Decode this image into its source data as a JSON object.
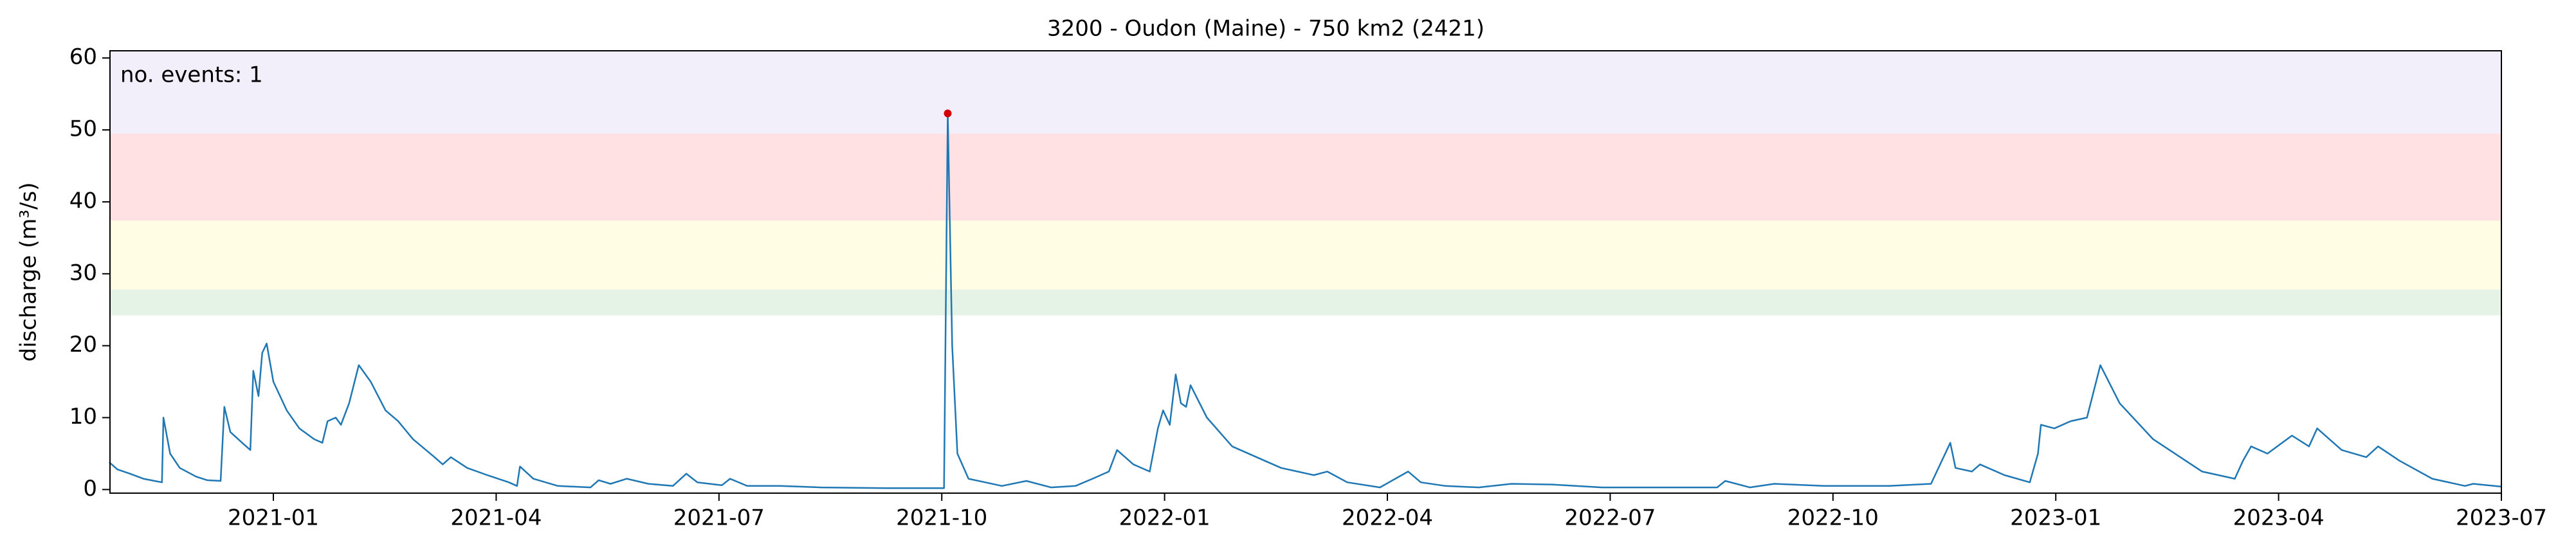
{
  "chart_data": {
    "type": "line",
    "title": "3200 - Oudon (Maine) - 750 km2 (2421)",
    "y_label": "discharge (m³/s)",
    "annotation": "no. events: 1",
    "annotation_color": "#d40000",
    "xlim": [
      -2.2,
      30
    ],
    "ylim": [
      -0.5,
      61
    ],
    "xticks": [
      {
        "value": 0,
        "label": "2021-01"
      },
      {
        "value": 3,
        "label": "2021-04"
      },
      {
        "value": 6,
        "label": "2021-07"
      },
      {
        "value": 9,
        "label": "2021-10"
      },
      {
        "value": 12,
        "label": "2022-01"
      },
      {
        "value": 15,
        "label": "2022-04"
      },
      {
        "value": 18,
        "label": "2022-07"
      },
      {
        "value": 21,
        "label": "2022-10"
      },
      {
        "value": 24,
        "label": "2023-01"
      },
      {
        "value": 27,
        "label": "2023-04"
      },
      {
        "value": 30,
        "label": "2023-07"
      }
    ],
    "yticks": [
      0,
      10,
      20,
      30,
      40,
      50,
      60
    ],
    "bands": [
      {
        "from": 24.2,
        "to": 27.8,
        "color": "#e4f3e5"
      },
      {
        "from": 27.8,
        "to": 37.4,
        "color": "#fffde4"
      },
      {
        "from": 37.4,
        "to": 49.5,
        "color": "#ffe1e4"
      },
      {
        "from": 49.5,
        "to": 61,
        "color": "#f2eefa"
      }
    ],
    "events": {
      "color": "#d40000",
      "x": [
        9.08
      ],
      "values": [
        52.3
      ]
    },
    "series": [
      {
        "color": "#1f77b4",
        "x": [
          -2.21,
          -2.1,
          -1.93,
          -1.75,
          -1.6,
          -1.5,
          -1.48,
          -1.39,
          -1.26,
          -1.04,
          -0.89,
          -0.71,
          -0.66,
          -0.58,
          -0.42,
          -0.31,
          -0.27,
          -0.2,
          -0.15,
          -0.09,
          0,
          0.18,
          0.35,
          0.55,
          0.66,
          0.73,
          0.84,
          0.91,
          1.02,
          1.15,
          1.31,
          1.51,
          1.68,
          1.88,
          2.17,
          2.28,
          2.39,
          2.61,
          2.88,
          3.17,
          3.28,
          3.32,
          3.5,
          3.83,
          4.27,
          4.38,
          4.54,
          4.76,
          5.05,
          5.38,
          5.56,
          5.71,
          6.04,
          6.15,
          6.38,
          6.82,
          7.37,
          8.26,
          9.03,
          9.08,
          9.14,
          9.21,
          9.36,
          9.81,
          10.14,
          10.47,
          10.8,
          11.03,
          11.25,
          11.36,
          11.58,
          11.8,
          11.91,
          11.98,
          12.07,
          12.15,
          12.22,
          12.29,
          12.35,
          12.57,
          12.91,
          13.35,
          13.57,
          13.79,
          14.01,
          14.19,
          14.46,
          14.9,
          15.28,
          15.45,
          15.78,
          16.23,
          16.67,
          17.22,
          17.89,
          18.44,
          19.44,
          19.55,
          19.88,
          20.21,
          20.88,
          21.76,
          22.32,
          22.58,
          22.65,
          22.87,
          22.98,
          23.31,
          23.65,
          23.76,
          23.8,
          23.98,
          24.2,
          24.42,
          24.6,
          24.86,
          25.31,
          25.75,
          25.97,
          26.19,
          26.41,
          26.52,
          26.63,
          26.85,
          27.18,
          27.41,
          27.52,
          27.85,
          28.18,
          28.34,
          28.63,
          29.07,
          29.51,
          29.62,
          30
        ],
        "values": [
          3.8,
          2.8,
          2.2,
          1.5,
          1.2,
          1.0,
          10.0,
          5,
          3.0,
          1.8,
          1.3,
          1.2,
          11.5,
          8,
          6.5,
          5.5,
          16.5,
          13,
          19,
          20.3,
          15,
          11,
          8.5,
          7,
          6.5,
          9.5,
          10,
          9,
          12,
          17.3,
          15,
          11,
          9.5,
          7,
          4.5,
          3.5,
          4.5,
          3,
          2,
          1,
          0.5,
          3.2,
          1.5,
          0.5,
          0.3,
          1.3,
          0.8,
          1.5,
          0.8,
          0.5,
          2.2,
          1.0,
          0.6,
          1.5,
          0.5,
          0.5,
          0.3,
          0.2,
          0.2,
          52.3,
          20,
          5,
          1.5,
          0.5,
          1.2,
          0.3,
          0.5,
          1.5,
          2.5,
          5.5,
          3.5,
          2.5,
          8.5,
          11,
          9,
          16,
          12,
          11.5,
          14.5,
          10,
          6,
          4,
          3,
          2.5,
          2,
          2.5,
          1,
          0.3,
          2.5,
          1,
          0.5,
          0.3,
          0.8,
          0.7,
          0.3,
          0.3,
          0.3,
          1.2,
          0.3,
          0.8,
          0.5,
          0.5,
          0.8,
          6.5,
          3,
          2.5,
          3.5,
          2,
          1,
          5,
          9,
          8.5,
          9.5,
          10,
          17.3,
          12,
          7,
          4,
          2.5,
          2,
          1.5,
          4,
          6,
          5,
          7.5,
          6,
          8.5,
          5.5,
          4.5,
          6,
          4,
          1.5,
          0.5,
          0.8,
          0.4
        ]
      }
    ]
  }
}
